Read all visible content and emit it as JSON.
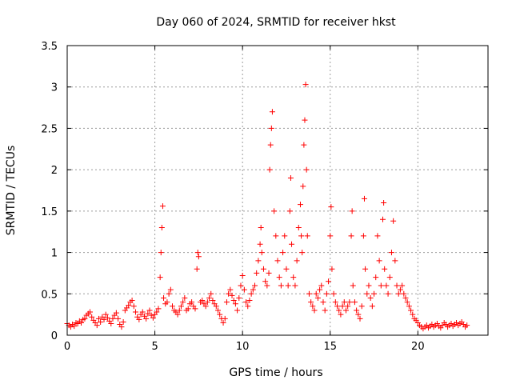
{
  "chart_data": {
    "type": "scatter",
    "title": "Day 060 of 2024, SRMTID for receiver hkst",
    "xlabel": "GPS time / hours",
    "ylabel": "SRMTID / TECUs",
    "xlim": [
      0,
      24
    ],
    "ylim": [
      0,
      3.5
    ],
    "xticks": [
      0,
      5,
      10,
      15,
      20
    ],
    "yticks": [
      0,
      0.5,
      1,
      1.5,
      2,
      2.5,
      3,
      3.5
    ],
    "xtick_labels": [
      "0",
      "5",
      "10",
      "15",
      "20"
    ],
    "ytick_labels": [
      "0",
      "0.5",
      "1",
      "1.5",
      "2",
      "2.5",
      "3",
      "3.5"
    ],
    "grid": true,
    "marker": "plus",
    "color": "#ff0000",
    "series": [
      {
        "name": "SRMTID",
        "points": [
          [
            0.0,
            0.14
          ],
          [
            0.1,
            0.12
          ],
          [
            0.2,
            0.1
          ],
          [
            0.3,
            0.13
          ],
          [
            0.4,
            0.11
          ],
          [
            0.5,
            0.15
          ],
          [
            0.6,
            0.14
          ],
          [
            0.7,
            0.17
          ],
          [
            0.8,
            0.15
          ],
          [
            0.9,
            0.19
          ],
          [
            1.0,
            0.2
          ],
          [
            1.1,
            0.24
          ],
          [
            1.2,
            0.26
          ],
          [
            1.3,
            0.28
          ],
          [
            1.4,
            0.22
          ],
          [
            1.5,
            0.18
          ],
          [
            1.6,
            0.15
          ],
          [
            1.7,
            0.12
          ],
          [
            1.8,
            0.2
          ],
          [
            1.9,
            0.16
          ],
          [
            2.0,
            0.22
          ],
          [
            2.1,
            0.19
          ],
          [
            2.2,
            0.25
          ],
          [
            2.3,
            0.21
          ],
          [
            2.4,
            0.17
          ],
          [
            2.5,
            0.14
          ],
          [
            2.6,
            0.2
          ],
          [
            2.7,
            0.24
          ],
          [
            2.8,
            0.27
          ],
          [
            2.9,
            0.2
          ],
          [
            3.0,
            0.13
          ],
          [
            3.1,
            0.1
          ],
          [
            3.2,
            0.16
          ],
          [
            3.3,
            0.3
          ],
          [
            3.4,
            0.33
          ],
          [
            3.5,
            0.36
          ],
          [
            3.6,
            0.4
          ],
          [
            3.7,
            0.42
          ],
          [
            3.8,
            0.35
          ],
          [
            3.9,
            0.28
          ],
          [
            4.0,
            0.22
          ],
          [
            4.1,
            0.19
          ],
          [
            4.2,
            0.25
          ],
          [
            4.3,
            0.28
          ],
          [
            4.4,
            0.23
          ],
          [
            4.5,
            0.2
          ],
          [
            4.6,
            0.26
          ],
          [
            4.7,
            0.3
          ],
          [
            4.8,
            0.24
          ],
          [
            4.9,
            0.21
          ],
          [
            5.0,
            0.25
          ],
          [
            5.1,
            0.28
          ],
          [
            5.2,
            0.32
          ],
          [
            5.3,
            0.7
          ],
          [
            5.35,
            1.0
          ],
          [
            5.4,
            1.3
          ],
          [
            5.45,
            1.56
          ],
          [
            5.5,
            0.45
          ],
          [
            5.6,
            0.38
          ],
          [
            5.7,
            0.4
          ],
          [
            5.8,
            0.5
          ],
          [
            5.9,
            0.55
          ],
          [
            6.0,
            0.35
          ],
          [
            6.1,
            0.3
          ],
          [
            6.2,
            0.28
          ],
          [
            6.3,
            0.25
          ],
          [
            6.4,
            0.3
          ],
          [
            6.5,
            0.35
          ],
          [
            6.6,
            0.4
          ],
          [
            6.7,
            0.45
          ],
          [
            6.8,
            0.3
          ],
          [
            6.9,
            0.32
          ],
          [
            7.0,
            0.38
          ],
          [
            7.1,
            0.4
          ],
          [
            7.2,
            0.35
          ],
          [
            7.3,
            0.32
          ],
          [
            7.4,
            0.8
          ],
          [
            7.45,
            1.0
          ],
          [
            7.5,
            0.95
          ],
          [
            7.6,
            0.4
          ],
          [
            7.7,
            0.42
          ],
          [
            7.8,
            0.38
          ],
          [
            7.9,
            0.35
          ],
          [
            8.0,
            0.4
          ],
          [
            8.1,
            0.45
          ],
          [
            8.2,
            0.5
          ],
          [
            8.3,
            0.42
          ],
          [
            8.4,
            0.38
          ],
          [
            8.5,
            0.35
          ],
          [
            8.6,
            0.3
          ],
          [
            8.7,
            0.25
          ],
          [
            8.8,
            0.2
          ],
          [
            8.9,
            0.15
          ],
          [
            9.0,
            0.2
          ],
          [
            9.1,
            0.4
          ],
          [
            9.2,
            0.5
          ],
          [
            9.3,
            0.55
          ],
          [
            9.4,
            0.48
          ],
          [
            9.5,
            0.42
          ],
          [
            9.6,
            0.38
          ],
          [
            9.7,
            0.3
          ],
          [
            9.8,
            0.45
          ],
          [
            9.9,
            0.6
          ],
          [
            10.0,
            0.72
          ],
          [
            10.1,
            0.55
          ],
          [
            10.2,
            0.4
          ],
          [
            10.3,
            0.35
          ],
          [
            10.4,
            0.42
          ],
          [
            10.5,
            0.5
          ],
          [
            10.6,
            0.55
          ],
          [
            10.7,
            0.6
          ],
          [
            10.8,
            0.75
          ],
          [
            10.9,
            0.9
          ],
          [
            11.0,
            1.1
          ],
          [
            11.05,
            1.3
          ],
          [
            11.1,
            1.0
          ],
          [
            11.2,
            0.8
          ],
          [
            11.3,
            0.65
          ],
          [
            11.4,
            0.6
          ],
          [
            11.5,
            0.75
          ],
          [
            11.55,
            2.0
          ],
          [
            11.6,
            2.3
          ],
          [
            11.65,
            2.5
          ],
          [
            11.7,
            2.7
          ],
          [
            11.8,
            1.5
          ],
          [
            11.9,
            1.2
          ],
          [
            12.0,
            0.9
          ],
          [
            12.1,
            0.7
          ],
          [
            12.2,
            0.6
          ],
          [
            12.3,
            1.0
          ],
          [
            12.4,
            1.2
          ],
          [
            12.5,
            0.8
          ],
          [
            12.6,
            0.6
          ],
          [
            12.7,
            1.5
          ],
          [
            12.75,
            1.9
          ],
          [
            12.8,
            1.1
          ],
          [
            12.9,
            0.7
          ],
          [
            13.0,
            0.6
          ],
          [
            13.1,
            0.9
          ],
          [
            13.2,
            1.3
          ],
          [
            13.3,
            1.58
          ],
          [
            13.35,
            1.2
          ],
          [
            13.4,
            1.0
          ],
          [
            13.45,
            1.8
          ],
          [
            13.5,
            2.3
          ],
          [
            13.55,
            2.6
          ],
          [
            13.6,
            3.03
          ],
          [
            13.65,
            2.0
          ],
          [
            13.7,
            1.2
          ],
          [
            13.8,
            0.5
          ],
          [
            13.9,
            0.4
          ],
          [
            14.0,
            0.35
          ],
          [
            14.1,
            0.3
          ],
          [
            14.2,
            0.5
          ],
          [
            14.3,
            0.45
          ],
          [
            14.4,
            0.55
          ],
          [
            14.5,
            0.6
          ],
          [
            14.6,
            0.4
          ],
          [
            14.7,
            0.3
          ],
          [
            14.8,
            0.5
          ],
          [
            14.9,
            0.65
          ],
          [
            15.0,
            1.2
          ],
          [
            15.05,
            1.55
          ],
          [
            15.1,
            0.8
          ],
          [
            15.2,
            0.5
          ],
          [
            15.3,
            0.4
          ],
          [
            15.4,
            0.35
          ],
          [
            15.5,
            0.3
          ],
          [
            15.6,
            0.25
          ],
          [
            15.7,
            0.35
          ],
          [
            15.8,
            0.4
          ],
          [
            15.9,
            0.3
          ],
          [
            16.0,
            0.35
          ],
          [
            16.1,
            0.4
          ],
          [
            16.2,
            1.2
          ],
          [
            16.25,
            1.5
          ],
          [
            16.3,
            0.6
          ],
          [
            16.4,
            0.4
          ],
          [
            16.5,
            0.3
          ],
          [
            16.6,
            0.25
          ],
          [
            16.7,
            0.2
          ],
          [
            16.8,
            0.35
          ],
          [
            16.9,
            1.2
          ],
          [
            16.95,
            1.65
          ],
          [
            17.0,
            0.8
          ],
          [
            17.1,
            0.5
          ],
          [
            17.2,
            0.6
          ],
          [
            17.3,
            0.45
          ],
          [
            17.4,
            0.35
          ],
          [
            17.5,
            0.5
          ],
          [
            17.6,
            0.7
          ],
          [
            17.7,
            1.2
          ],
          [
            17.8,
            0.9
          ],
          [
            17.9,
            0.6
          ],
          [
            18.0,
            1.4
          ],
          [
            18.05,
            1.6
          ],
          [
            18.1,
            0.8
          ],
          [
            18.2,
            0.6
          ],
          [
            18.3,
            0.5
          ],
          [
            18.4,
            0.7
          ],
          [
            18.5,
            1.0
          ],
          [
            18.6,
            1.38
          ],
          [
            18.7,
            0.9
          ],
          [
            18.8,
            0.6
          ],
          [
            18.9,
            0.5
          ],
          [
            19.0,
            0.55
          ],
          [
            19.1,
            0.6
          ],
          [
            19.2,
            0.5
          ],
          [
            19.3,
            0.45
          ],
          [
            19.4,
            0.4
          ],
          [
            19.5,
            0.35
          ],
          [
            19.6,
            0.3
          ],
          [
            19.7,
            0.25
          ],
          [
            19.8,
            0.2
          ],
          [
            19.9,
            0.18
          ],
          [
            20.0,
            0.15
          ],
          [
            20.1,
            0.12
          ],
          [
            20.2,
            0.1
          ],
          [
            20.3,
            0.08
          ],
          [
            20.4,
            0.1
          ],
          [
            20.5,
            0.12
          ],
          [
            20.6,
            0.09
          ],
          [
            20.7,
            0.11
          ],
          [
            20.8,
            0.13
          ],
          [
            20.9,
            0.1
          ],
          [
            21.0,
            0.12
          ],
          [
            21.1,
            0.14
          ],
          [
            21.2,
            0.11
          ],
          [
            21.3,
            0.09
          ],
          [
            21.4,
            0.12
          ],
          [
            21.5,
            0.15
          ],
          [
            21.6,
            0.13
          ],
          [
            21.7,
            0.1
          ],
          [
            21.8,
            0.12
          ],
          [
            21.9,
            0.14
          ],
          [
            22.0,
            0.11
          ],
          [
            22.1,
            0.13
          ],
          [
            22.2,
            0.15
          ],
          [
            22.3,
            0.12
          ],
          [
            22.4,
            0.14
          ],
          [
            22.5,
            0.16
          ],
          [
            22.6,
            0.13
          ],
          [
            22.7,
            0.1
          ],
          [
            22.8,
            0.12
          ]
        ]
      }
    ]
  }
}
